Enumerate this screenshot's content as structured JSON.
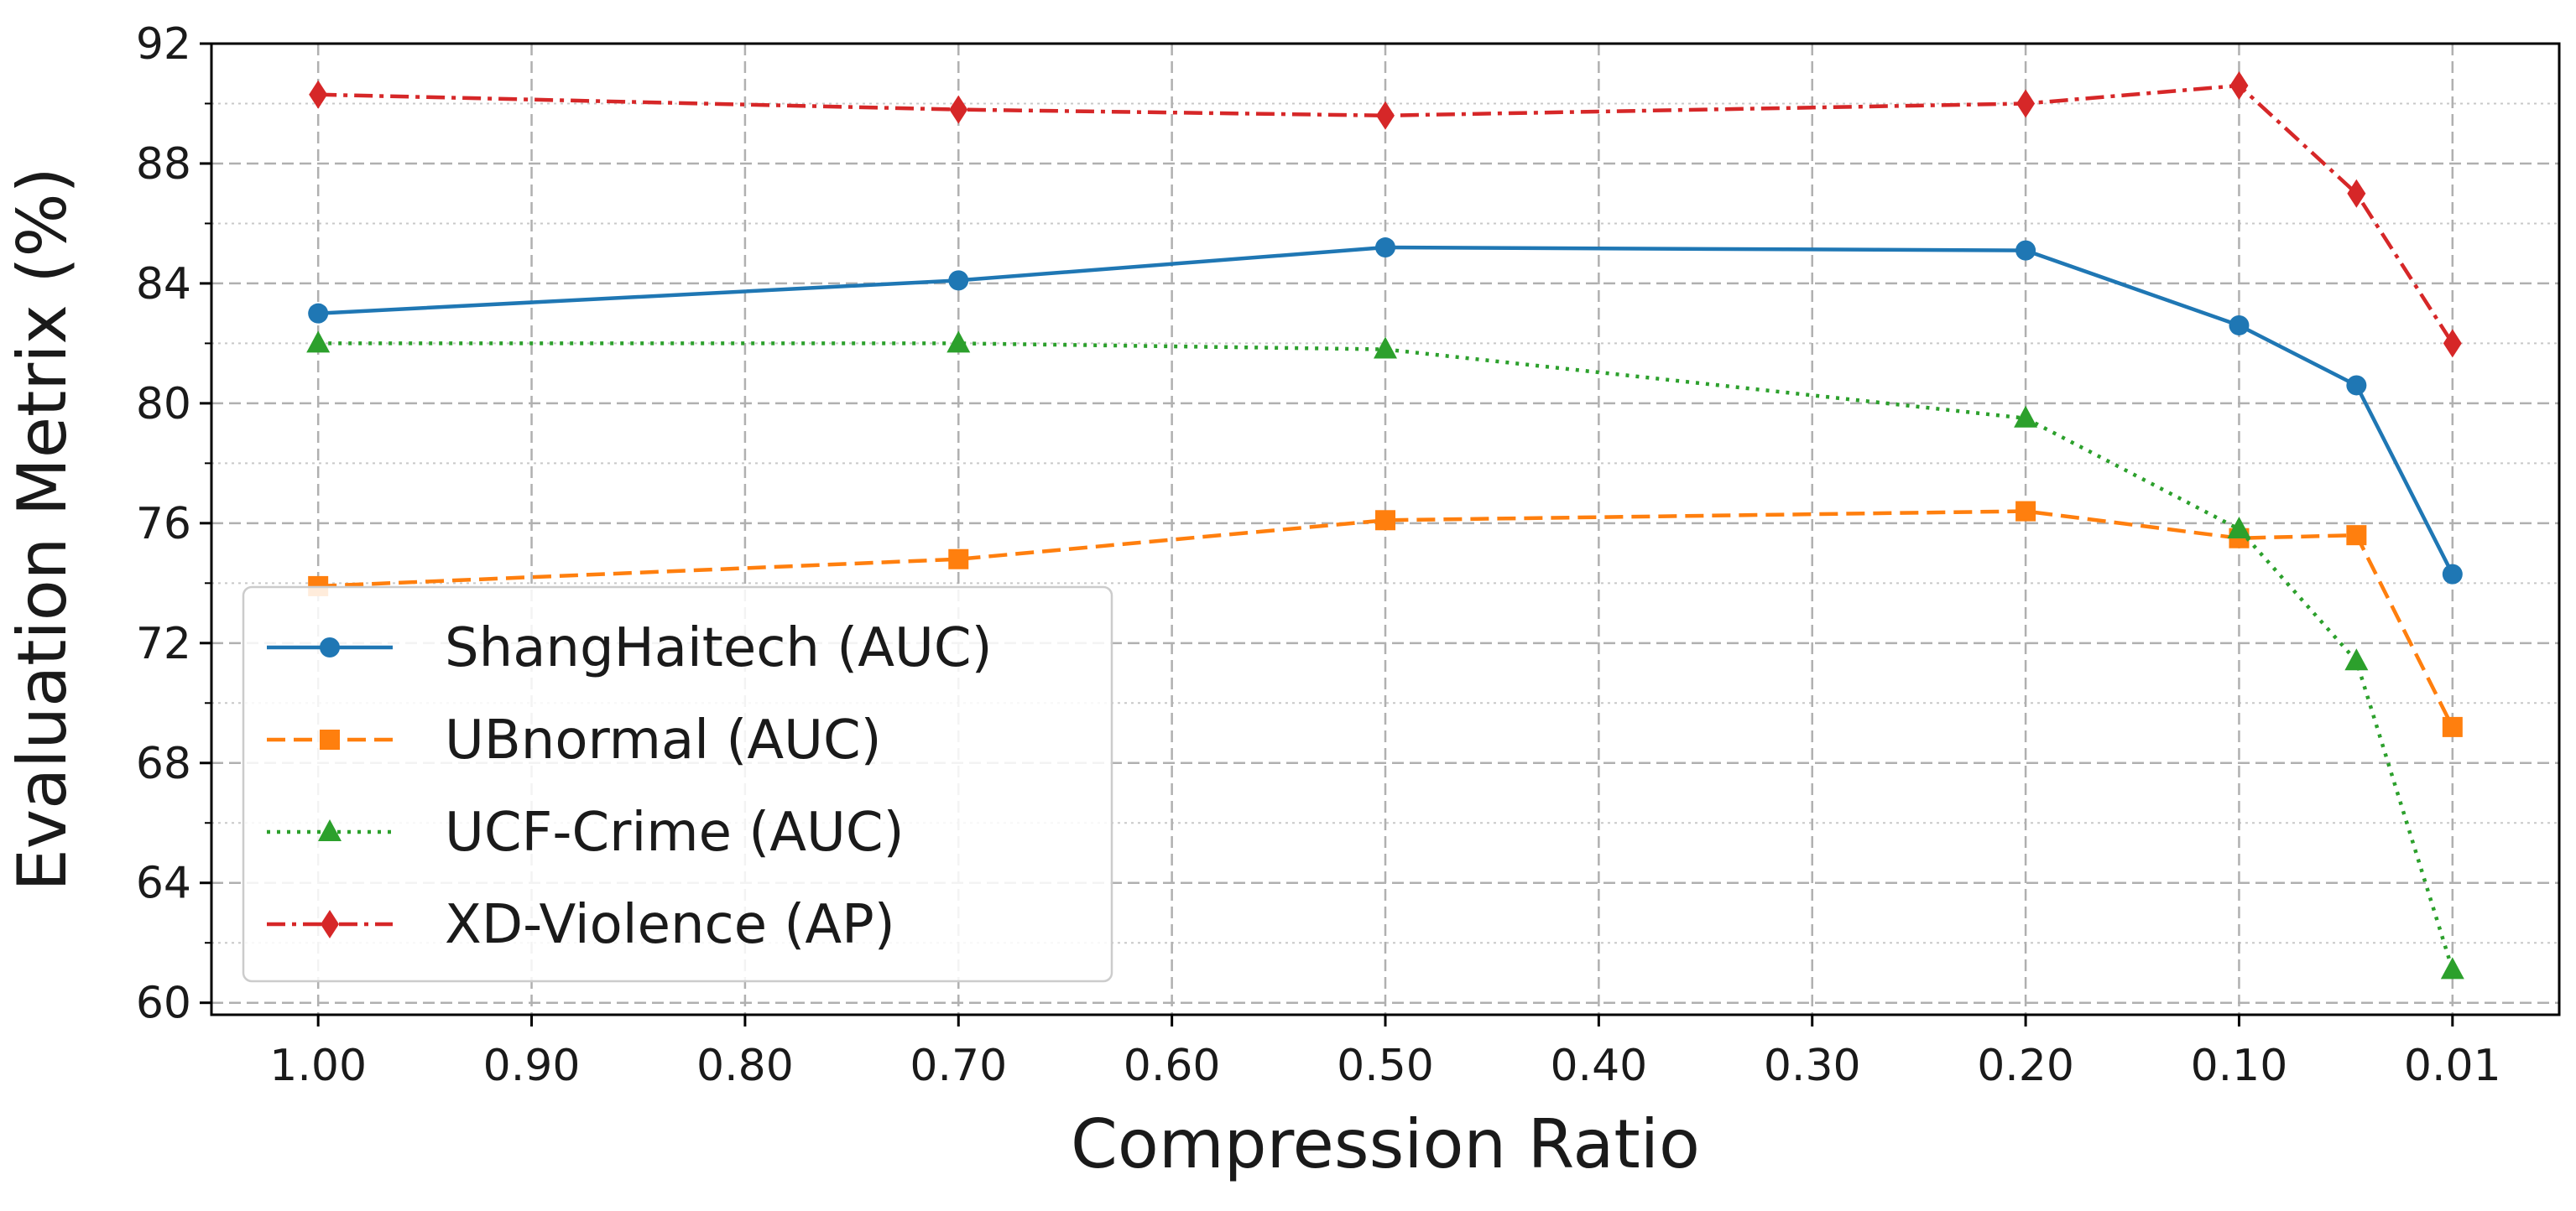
{
  "chart_data": {
    "type": "line",
    "title": "",
    "xlabel": "Compression Ratio",
    "ylabel": "Evaluation Metrix (%)",
    "x_ticks": [
      "1.00",
      "0.90",
      "0.80",
      "0.70",
      "0.60",
      "0.50",
      "0.40",
      "0.30",
      "0.20",
      "0.10",
      "0.01"
    ],
    "x_positions": [
      0,
      1,
      2,
      3,
      4,
      5,
      6,
      7,
      8,
      9,
      10
    ],
    "xlim": [
      -0.5,
      10.5
    ],
    "y_ticks": [
      "60",
      "64",
      "68",
      "72",
      "76",
      "80",
      "84",
      "88",
      "92"
    ],
    "ylim": [
      59.6,
      92
    ],
    "grid": true,
    "legend_position": "lower-left",
    "series": [
      {
        "name": "ShangHaitech (AUC)",
        "color": "#1f77b4",
        "line_style": "solid",
        "marker": "circle",
        "x": [
          0,
          3,
          5,
          8,
          9,
          9.55,
          10
        ],
        "values": [
          83.0,
          84.1,
          85.2,
          85.1,
          82.6,
          80.6,
          74.3
        ]
      },
      {
        "name": "UBnormal (AUC)",
        "color": "#ff7f0e",
        "line_style": "dashed",
        "marker": "square",
        "x": [
          0,
          3,
          5,
          8,
          9,
          9.55,
          10
        ],
        "values": [
          73.9,
          74.8,
          76.1,
          76.4,
          75.5,
          75.6,
          69.2
        ]
      },
      {
        "name": "UCF-Crime (AUC)",
        "color": "#2ca02c",
        "line_style": "dotted",
        "marker": "triangle",
        "x": [
          0,
          3,
          5,
          8,
          9,
          9.55,
          10
        ],
        "values": [
          82.0,
          82.0,
          81.8,
          79.5,
          75.8,
          71.4,
          61.1
        ]
      },
      {
        "name": "XD-Violence (AP)",
        "color": "#d62728",
        "line_style": "dashdot",
        "marker": "diamond",
        "x": [
          0,
          3,
          5,
          8,
          9,
          9.55,
          10
        ],
        "values": [
          90.3,
          89.8,
          89.6,
          90.0,
          90.6,
          87.0,
          82.0
        ]
      }
    ]
  }
}
